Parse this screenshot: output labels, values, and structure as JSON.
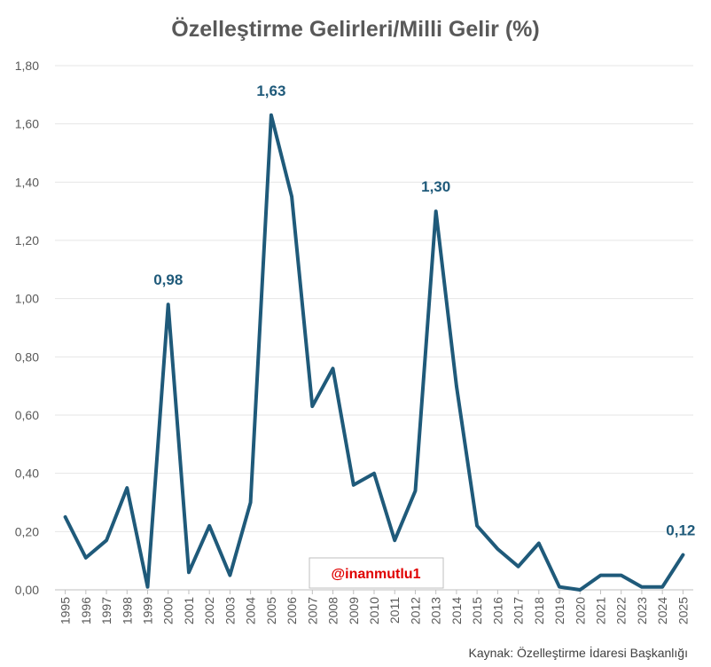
{
  "chart_data": {
    "type": "line",
    "title": "Özelleştirme Gelirleri/Milli Gelir (%)",
    "x": [
      "1995",
      "1996",
      "1997",
      "1998",
      "1999",
      "2000",
      "2001",
      "2002",
      "2003",
      "2004",
      "2005",
      "2006",
      "2007",
      "2008",
      "2009",
      "2010",
      "2011",
      "2012",
      "2013",
      "2014",
      "2015",
      "2016",
      "2017",
      "2018",
      "2019",
      "2020",
      "2021",
      "2022",
      "2023",
      "2024",
      "2025"
    ],
    "series": [
      {
        "values": [
          0.25,
          0.11,
          0.17,
          0.35,
          0.01,
          0.98,
          0.06,
          0.22,
          0.05,
          0.3,
          1.63,
          1.35,
          0.63,
          0.76,
          0.36,
          0.4,
          0.17,
          0.34,
          1.3,
          0.7,
          0.22,
          0.14,
          0.08,
          0.16,
          0.01,
          0.0,
          0.05,
          0.05,
          0.01,
          0.01,
          0.12
        ]
      }
    ],
    "ylim": [
      0,
      1.8
    ],
    "yticks": [
      "0,00",
      "0,20",
      "0,40",
      "0,60",
      "0,80",
      "1,00",
      "1,20",
      "1,40",
      "1,60",
      "1,80"
    ],
    "data_labels": [
      {
        "category": "2000",
        "text": "0,98"
      },
      {
        "category": "2005",
        "text": "1,63"
      },
      {
        "category": "2013",
        "text": "1,30"
      },
      {
        "category": "2025",
        "text": "0,12"
      }
    ],
    "grid": true,
    "legend": "none",
    "line_color": "#1f5a7a",
    "label_color": "#1f5a7a"
  },
  "watermark": "@inanmutlu1",
  "source": "Kaynak: Özelleştirme İdaresi Başkanlığı"
}
